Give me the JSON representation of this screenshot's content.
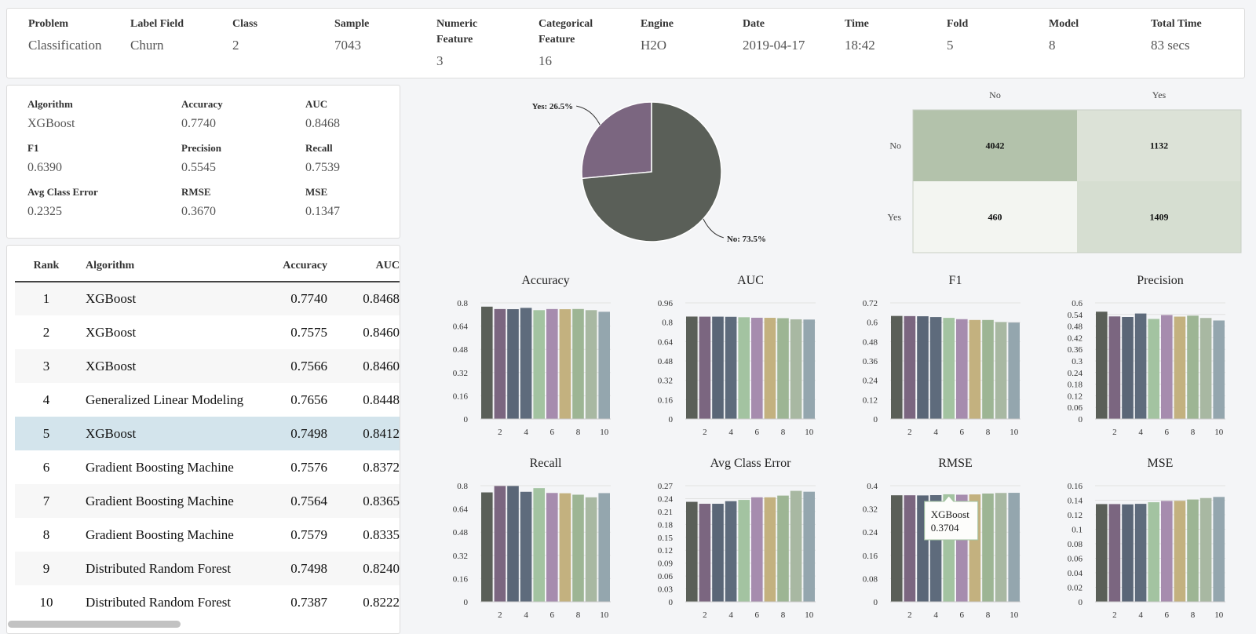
{
  "summary": [
    {
      "label": "Problem",
      "value": "Classification"
    },
    {
      "label": "Label Field",
      "value": "Churn"
    },
    {
      "label": "Class",
      "value": "2"
    },
    {
      "label": "Sample",
      "value": "7043"
    },
    {
      "label": "Numeric Feature",
      "value": "3"
    },
    {
      "label": "Categorical Feature",
      "value": "16"
    },
    {
      "label": "Engine",
      "value": "H2O"
    },
    {
      "label": "Date",
      "value": "2019-04-17"
    },
    {
      "label": "Time",
      "value": "18:42"
    },
    {
      "label": "Fold",
      "value": "5"
    },
    {
      "label": "Model",
      "value": "8"
    },
    {
      "label": "Total Time",
      "value": "83 secs"
    }
  ],
  "best_model": [
    {
      "label": "Algorithm",
      "value": "XGBoost"
    },
    {
      "label": "Accuracy",
      "value": "0.7740"
    },
    {
      "label": "AUC",
      "value": "0.8468"
    },
    {
      "label": "F1",
      "value": "0.6390"
    },
    {
      "label": "Precision",
      "value": "0.5545"
    },
    {
      "label": "Recall",
      "value": "0.7539"
    },
    {
      "label": "Avg Class Error",
      "value": "0.2325"
    },
    {
      "label": "RMSE",
      "value": "0.3670"
    },
    {
      "label": "MSE",
      "value": "0.1347"
    }
  ],
  "leaderboard": {
    "headers": {
      "rank": "Rank",
      "algorithm": "Algorithm",
      "accuracy": "Accuracy",
      "auc": "AUC"
    },
    "selected_rank": 5,
    "rows": [
      {
        "rank": "1",
        "algorithm": "XGBoost",
        "accuracy": "0.7740",
        "auc": "0.8468"
      },
      {
        "rank": "2",
        "algorithm": "XGBoost",
        "accuracy": "0.7575",
        "auc": "0.8460"
      },
      {
        "rank": "3",
        "algorithm": "XGBoost",
        "accuracy": "0.7566",
        "auc": "0.8460"
      },
      {
        "rank": "4",
        "algorithm": "Generalized Linear Modeling",
        "accuracy": "0.7656",
        "auc": "0.8448"
      },
      {
        "rank": "5",
        "algorithm": "XGBoost",
        "accuracy": "0.7498",
        "auc": "0.8412"
      },
      {
        "rank": "6",
        "algorithm": "Gradient Boosting Machine",
        "accuracy": "0.7576",
        "auc": "0.8372"
      },
      {
        "rank": "7",
        "algorithm": "Gradient Boosting Machine",
        "accuracy": "0.7564",
        "auc": "0.8365"
      },
      {
        "rank": "8",
        "algorithm": "Gradient Boosting Machine",
        "accuracy": "0.7579",
        "auc": "0.8335"
      },
      {
        "rank": "9",
        "algorithm": "Distributed Random Forest",
        "accuracy": "0.7498",
        "auc": "0.8240"
      },
      {
        "rank": "10",
        "algorithm": "Distributed Random Forest",
        "accuracy": "0.7387",
        "auc": "0.8222"
      }
    ]
  },
  "colors": {
    "bars": [
      "#5a5f58",
      "#7b6680",
      "#5a6677",
      "#5e6b7c",
      "#a3c3a1",
      "#a68cae",
      "#c3b17f",
      "#9db594",
      "#a8b8a2",
      "#94a6ae"
    ],
    "pie_no": "#5a5f58",
    "pie_yes": "#7b6680",
    "cm_high": "#b3c2ab",
    "cm_low": "#f3f5f1",
    "cm_mid": "#e7ebe4"
  },
  "chart_data": [
    {
      "type": "pie",
      "slices": [
        {
          "label": "Yes: 26.5%",
          "value": 26.5
        },
        {
          "label": "No: 73.5%",
          "value": 73.5
        }
      ]
    },
    {
      "type": "heatmap",
      "x_labels": [
        "No",
        "Yes"
      ],
      "y_labels": [
        "No",
        "Yes"
      ],
      "values": [
        [
          4042,
          1132
        ],
        [
          460,
          1409
        ]
      ]
    },
    {
      "type": "bar",
      "title": "Accuracy",
      "x": [
        1,
        2,
        3,
        4,
        5,
        6,
        7,
        8,
        9,
        10
      ],
      "x_ticks": [
        "2",
        "4",
        "6",
        "8",
        "10"
      ],
      "y_ticks": [
        "0",
        "0.16",
        "0.32",
        "0.48",
        "0.64",
        "0.8"
      ],
      "ylim": [
        0,
        0.8
      ],
      "values": [
        0.774,
        0.7575,
        0.7566,
        0.7656,
        0.7498,
        0.7576,
        0.7564,
        0.7579,
        0.7498,
        0.7387
      ]
    },
    {
      "type": "bar",
      "title": "AUC",
      "x": [
        1,
        2,
        3,
        4,
        5,
        6,
        7,
        8,
        9,
        10
      ],
      "x_ticks": [
        "2",
        "4",
        "6",
        "8",
        "10"
      ],
      "y_ticks": [
        "0",
        "0.16",
        "0.32",
        "0.48",
        "0.64",
        "0.8",
        "0.96"
      ],
      "ylim": [
        0,
        0.96
      ],
      "values": [
        0.8468,
        0.846,
        0.846,
        0.8448,
        0.8412,
        0.8372,
        0.8365,
        0.8335,
        0.824,
        0.8222
      ]
    },
    {
      "type": "bar",
      "title": "F1",
      "x": [
        1,
        2,
        3,
        4,
        5,
        6,
        7,
        8,
        9,
        10
      ],
      "x_ticks": [
        "2",
        "4",
        "6",
        "8",
        "10"
      ],
      "y_ticks": [
        "0",
        "0.12",
        "0.24",
        "0.36",
        "0.48",
        "0.6",
        "0.72"
      ],
      "ylim": [
        0,
        0.72
      ],
      "values": [
        0.639,
        0.638,
        0.637,
        0.632,
        0.627,
        0.619,
        0.614,
        0.614,
        0.601,
        0.598
      ]
    },
    {
      "type": "bar",
      "title": "Precision",
      "x": [
        1,
        2,
        3,
        4,
        5,
        6,
        7,
        8,
        9,
        10
      ],
      "x_ticks": [
        "2",
        "4",
        "6",
        "8",
        "10"
      ],
      "y_ticks": [
        "0",
        "0.06",
        "0.12",
        "0.18",
        "0.24",
        "0.3",
        "0.36",
        "0.42",
        "0.48",
        "0.54",
        "0.6"
      ],
      "ylim": [
        0,
        0.6
      ],
      "values": [
        0.5545,
        0.53,
        0.527,
        0.545,
        0.517,
        0.537,
        0.529,
        0.534,
        0.522,
        0.509
      ]
    },
    {
      "type": "bar",
      "title": "Recall",
      "x": [
        1,
        2,
        3,
        4,
        5,
        6,
        7,
        8,
        9,
        10
      ],
      "x_ticks": [
        "2",
        "4",
        "6",
        "8",
        "10"
      ],
      "y_ticks": [
        "0",
        "0.16",
        "0.32",
        "0.48",
        "0.64",
        "0.8"
      ],
      "ylim": [
        0,
        0.8
      ],
      "values": [
        0.7539,
        0.798,
        0.798,
        0.758,
        0.783,
        0.75,
        0.748,
        0.738,
        0.72,
        0.749
      ]
    },
    {
      "type": "bar",
      "title": "Avg Class Error",
      "x": [
        1,
        2,
        3,
        4,
        5,
        6,
        7,
        8,
        9,
        10
      ],
      "x_ticks": [
        "2",
        "4",
        "6",
        "8",
        "10"
      ],
      "y_ticks": [
        "0",
        "0.03",
        "0.06",
        "0.09",
        "0.12",
        "0.15",
        "0.18",
        "0.21",
        "0.24",
        "0.27"
      ],
      "ylim": [
        0,
        0.27
      ],
      "values": [
        0.2325,
        0.228,
        0.228,
        0.234,
        0.237,
        0.243,
        0.243,
        0.247,
        0.258,
        0.256
      ]
    },
    {
      "type": "bar",
      "title": "RMSE",
      "x": [
        1,
        2,
        3,
        4,
        5,
        6,
        7,
        8,
        9,
        10
      ],
      "x_ticks": [
        "2",
        "4",
        "6",
        "8",
        "10"
      ],
      "y_ticks": [
        "0",
        "0.08",
        "0.16",
        "0.24",
        "0.32",
        "0.4"
      ],
      "ylim": [
        0,
        0.4
      ],
      "values": [
        0.367,
        0.367,
        0.3665,
        0.3675,
        0.3704,
        0.369,
        0.37,
        0.373,
        0.375,
        0.3755
      ],
      "tooltip": {
        "label": "XGBoost",
        "value": "0.3704",
        "index": 5
      }
    },
    {
      "type": "bar",
      "title": "MSE",
      "x": [
        1,
        2,
        3,
        4,
        5,
        6,
        7,
        8,
        9,
        10
      ],
      "x_ticks": [
        "2",
        "4",
        "6",
        "8",
        "10"
      ],
      "y_ticks": [
        "0",
        "0.02",
        "0.04",
        "0.06",
        "0.08",
        "0.1",
        "0.12",
        "0.14",
        "0.16"
      ],
      "ylim": [
        0,
        0.16
      ],
      "values": [
        0.1347,
        0.1347,
        0.1343,
        0.135,
        0.1372,
        0.139,
        0.1392,
        0.141,
        0.143,
        0.1445
      ]
    }
  ]
}
